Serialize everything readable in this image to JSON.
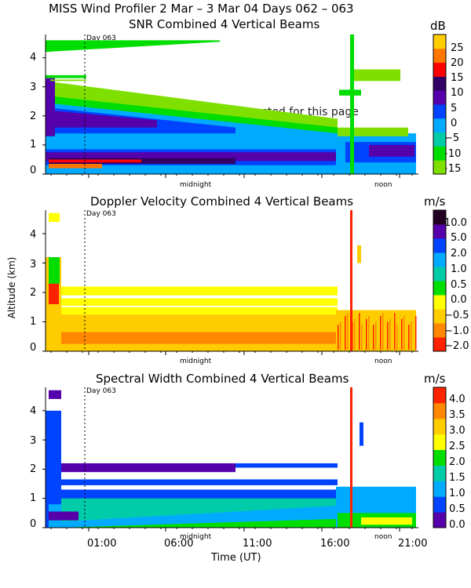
{
  "header": {
    "main_title": "MISS Wind Profiler    2 Mar –  3 Mar 04 Days 062 – 063"
  },
  "warning_text": "WARNING: 3 warning messages posted for this page",
  "time_axis": {
    "label": "Time (UT)",
    "ticks": [
      "01:00",
      "06:00",
      "11:00",
      "16:00",
      "21:00"
    ],
    "markers": [
      "Day 063",
      "midnight",
      "noon"
    ]
  },
  "altitude_axis": {
    "label": "Altitude (km)",
    "ticks": [
      "0",
      "1",
      "2",
      "3",
      "4"
    ]
  },
  "panels": [
    {
      "title": "SNR Combined 4 Vertical Beams",
      "unit": "dB",
      "colorbar_labels": [
        "25",
        "20",
        "15",
        "10",
        "5",
        "0",
        "−5",
        "−10",
        "−15"
      ]
    },
    {
      "title": "Doppler Velocity Combined 4 Vertical Beams",
      "unit": "m/s",
      "colorbar_labels": [
        "10.0",
        "5.0",
        "2.0",
        "1.0",
        "0.5",
        "0.0",
        "−0.5",
        "−1.0",
        "−2.0"
      ]
    },
    {
      "title": "Spectral Width Combined 4 Vertical Beams",
      "unit": "m/s",
      "colorbar_labels": [
        "4.0",
        "3.5",
        "3.0",
        "2.5",
        "2.0",
        "1.5",
        "1.0",
        "0.5",
        "0.0"
      ]
    }
  ],
  "colors": {
    "snr_scale": [
      "#7fe000",
      "#00dd00",
      "#00ccaa",
      "#00aaff",
      "#0044ff",
      "#5500aa",
      "#330066",
      "#ff0000",
      "#ff7700",
      "#ffcc00"
    ],
    "doppler_scale": [
      "#ff2200",
      "#ff8800",
      "#ffcc00",
      "#ffff00",
      "#00dd00",
      "#00ccaa",
      "#00aaff",
      "#0044ff",
      "#5500aa",
      "#220022"
    ],
    "width_scale": [
      "#5500aa",
      "#0044ff",
      "#00aaff",
      "#00ccaa",
      "#00dd00",
      "#ffff00",
      "#ffcc00",
      "#ff8800",
      "#ff2200"
    ]
  },
  "chart_data": [
    {
      "type": "heatmap",
      "title": "SNR Combined 4 Vertical Beams",
      "xlabel": "Time (UT)",
      "ylabel": "Altitude (km)",
      "ylim": [
        0,
        4.8
      ],
      "colorbar_unit": "dB",
      "colorbar_range": [
        -15,
        25
      ],
      "x_ticks": [
        "01:00",
        "06:00",
        "11:00",
        "16:00",
        "21:00"
      ]
    },
    {
      "type": "heatmap",
      "title": "Doppler Velocity Combined 4 Vertical Beams",
      "xlabel": "Time (UT)",
      "ylabel": "Altitude (km)",
      "ylim": [
        0,
        4.8
      ],
      "colorbar_unit": "m/s",
      "colorbar_range": [
        -2.0,
        10.0
      ],
      "x_ticks": [
        "01:00",
        "06:00",
        "11:00",
        "16:00",
        "21:00"
      ]
    },
    {
      "type": "heatmap",
      "title": "Spectral Width Combined 4 Vertical Beams",
      "xlabel": "Time (UT)",
      "ylabel": "Altitude (km)",
      "ylim": [
        0,
        4.8
      ],
      "colorbar_unit": "m/s",
      "colorbar_range": [
        0.0,
        4.0
      ],
      "x_ticks": [
        "01:00",
        "06:00",
        "11:00",
        "16:00",
        "21:00"
      ]
    }
  ]
}
